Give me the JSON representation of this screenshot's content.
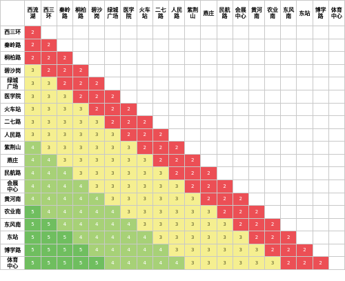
{
  "stations": [
    "西流湖",
    "西三环",
    "秦岭路",
    "桐柏路",
    "碧沙岗",
    "绿城\n广场",
    "医学院",
    "火车站",
    "二七路",
    "人民路",
    "紫荆山",
    "燕庄",
    "民航路",
    "会展\n中心",
    "黄河南",
    "农业南",
    "东风南",
    "东站",
    "博学路",
    "体育\n中心"
  ],
  "fares": [
    [
      2
    ],
    [
      2,
      2
    ],
    [
      2,
      2,
      2
    ],
    [
      3,
      2,
      2,
      2
    ],
    [
      3,
      3,
      2,
      2,
      2
    ],
    [
      3,
      3,
      3,
      2,
      2,
      2
    ],
    [
      3,
      3,
      3,
      3,
      2,
      2,
      2
    ],
    [
      3,
      3,
      3,
      3,
      3,
      2,
      2,
      2
    ],
    [
      3,
      3,
      3,
      3,
      3,
      3,
      2,
      2,
      2
    ],
    [
      4,
      3,
      3,
      3,
      3,
      3,
      3,
      2,
      2,
      2
    ],
    [
      4,
      4,
      3,
      3,
      3,
      3,
      3,
      3,
      2,
      2,
      2
    ],
    [
      4,
      4,
      4,
      3,
      3,
      3,
      3,
      3,
      3,
      2,
      2,
      2
    ],
    [
      4,
      4,
      4,
      4,
      3,
      3,
      3,
      3,
      3,
      3,
      2,
      2,
      2
    ],
    [
      4,
      4,
      4,
      4,
      4,
      3,
      3,
      3,
      3,
      3,
      3,
      2,
      2,
      2
    ],
    [
      5,
      4,
      4,
      4,
      4,
      4,
      3,
      3,
      3,
      3,
      3,
      3,
      2,
      2,
      2
    ],
    [
      5,
      5,
      4,
      4,
      4,
      4,
      4,
      3,
      3,
      3,
      3,
      3,
      3,
      2,
      2,
      2
    ],
    [
      5,
      5,
      5,
      4,
      4,
      4,
      4,
      4,
      3,
      3,
      3,
      3,
      3,
      3,
      2,
      2,
      2
    ],
    [
      5,
      5,
      5,
      5,
      4,
      4,
      4,
      4,
      4,
      3,
      3,
      3,
      3,
      3,
      3,
      2,
      2,
      2
    ],
    [
      5,
      5,
      5,
      5,
      5,
      4,
      4,
      4,
      4,
      4,
      3,
      3,
      3,
      3,
      3,
      3,
      2,
      2,
      2
    ]
  ],
  "colors": {
    "fare_2": "#ec4f55",
    "fare_3": "#f5ef90",
    "fare_4": "#a7d177",
    "fare_5": "#6fbe5f",
    "grid": "#c8c8c8"
  }
}
